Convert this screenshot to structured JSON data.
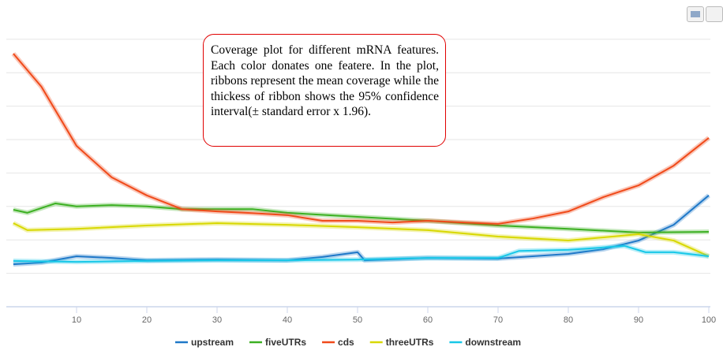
{
  "chart_data": {
    "type": "line",
    "title": "",
    "xlabel": "",
    "ylabel": "",
    "xlim": [
      0,
      100
    ],
    "ylim": [
      0,
      9
    ],
    "grid": true,
    "legend": "bottom-center",
    "xticks": [
      10,
      20,
      30,
      40,
      50,
      60,
      70,
      80,
      90,
      100
    ],
    "series": [
      {
        "name": "upstream",
        "color": "#1f78c8",
        "x": [
          1,
          5,
          10,
          15,
          20,
          30,
          40,
          45,
          50,
          51,
          60,
          70,
          80,
          85,
          90,
          95,
          100
        ],
        "y": [
          1.27,
          1.32,
          1.51,
          1.46,
          1.39,
          1.41,
          1.39,
          1.49,
          1.63,
          1.39,
          1.46,
          1.44,
          1.58,
          1.72,
          1.98,
          2.45,
          3.33
        ]
      },
      {
        "name": "fiveUTRs",
        "color": "#3cb022",
        "x": [
          1,
          3,
          7,
          10,
          15,
          20,
          25,
          30,
          35,
          40,
          50,
          60,
          70,
          80,
          90,
          100
        ],
        "y": [
          2.9,
          2.81,
          3.09,
          3.0,
          3.04,
          3.0,
          2.92,
          2.92,
          2.92,
          2.81,
          2.69,
          2.57,
          2.43,
          2.33,
          2.22,
          2.24
        ]
      },
      {
        "name": "cds",
        "color": "#f04a1a",
        "x": [
          1,
          5,
          10,
          15,
          20,
          25,
          30,
          35,
          40,
          45,
          50,
          55,
          60,
          65,
          70,
          75,
          80,
          85,
          90,
          95,
          100
        ],
        "y": [
          7.57,
          6.58,
          4.81,
          3.87,
          3.33,
          2.92,
          2.85,
          2.8,
          2.74,
          2.57,
          2.57,
          2.52,
          2.57,
          2.52,
          2.48,
          2.64,
          2.85,
          3.28,
          3.63,
          4.22,
          5.05
        ]
      },
      {
        "name": "threeUTRs",
        "color": "#d8d800",
        "x": [
          1,
          3,
          10,
          20,
          30,
          40,
          50,
          60,
          70,
          80,
          90,
          95,
          100
        ],
        "y": [
          2.5,
          2.29,
          2.33,
          2.43,
          2.5,
          2.45,
          2.38,
          2.29,
          2.1,
          1.98,
          2.17,
          1.98,
          1.51
        ]
      },
      {
        "name": "downstream",
        "color": "#18c8e8",
        "x": [
          1,
          10,
          20,
          30,
          40,
          50,
          60,
          70,
          73,
          80,
          88,
          91,
          95,
          100
        ],
        "y": [
          1.37,
          1.34,
          1.37,
          1.39,
          1.39,
          1.41,
          1.46,
          1.46,
          1.67,
          1.7,
          1.82,
          1.63,
          1.63,
          1.51
        ]
      }
    ]
  },
  "annotation": "Coverage plot for different mRNA features. Each color donates one featere. In the plot, ribbons represent the mean coverage while the thickess of ribbon shows the 95% confidence interval(± standard error x 1.96)."
}
